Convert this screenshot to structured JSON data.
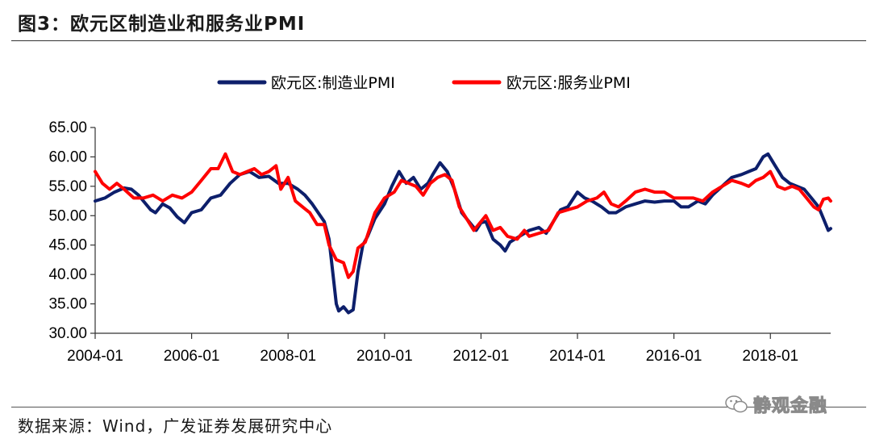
{
  "header": {
    "title": "图3：欧元区制造业和服务业PMI"
  },
  "footer": {
    "source": "数据来源：Wind，广发证券发展研究中心"
  },
  "watermark": {
    "text": "静观金融",
    "icon": "wechat-icon"
  },
  "colors": {
    "manufacturing": "#0d1f6b",
    "services": "#ff0000",
    "axis": "#333333"
  },
  "chart_data": {
    "type": "line",
    "title": "",
    "xlabel": "",
    "ylabel": "",
    "ylim": [
      30,
      65
    ],
    "yticks": [
      "30.00",
      "35.00",
      "40.00",
      "45.00",
      "50.00",
      "55.00",
      "60.00",
      "65.00"
    ],
    "xlim": [
      2004.0,
      2019.25
    ],
    "xticks": [
      "2004-01",
      "2006-01",
      "2008-01",
      "2010-01",
      "2012-01",
      "2014-01",
      "2016-01",
      "2018-01"
    ],
    "legend_position": "top-center",
    "series": [
      {
        "name": "欧元区:制造业PMI",
        "points": [
          [
            2004.0,
            52.5
          ],
          [
            2004.2,
            53.0
          ],
          [
            2004.4,
            54.0
          ],
          [
            2004.6,
            54.7
          ],
          [
            2004.75,
            54.5
          ],
          [
            2004.9,
            53.5
          ],
          [
            2005.0,
            52.5
          ],
          [
            2005.15,
            51.0
          ],
          [
            2005.25,
            50.5
          ],
          [
            2005.4,
            52.0
          ],
          [
            2005.55,
            51.3
          ],
          [
            2005.7,
            49.8
          ],
          [
            2005.85,
            48.8
          ],
          [
            2006.0,
            50.5
          ],
          [
            2006.2,
            51.0
          ],
          [
            2006.4,
            53.0
          ],
          [
            2006.6,
            53.5
          ],
          [
            2006.8,
            55.5
          ],
          [
            2007.0,
            57.0
          ],
          [
            2007.2,
            57.5
          ],
          [
            2007.4,
            56.5
          ],
          [
            2007.6,
            56.7
          ],
          [
            2007.8,
            55.5
          ],
          [
            2008.0,
            55.5
          ],
          [
            2008.2,
            54.5
          ],
          [
            2008.35,
            53.5
          ],
          [
            2008.5,
            52.0
          ],
          [
            2008.6,
            50.8
          ],
          [
            2008.75,
            49.0
          ],
          [
            2008.85,
            46.0
          ],
          [
            2009.0,
            35.0
          ],
          [
            2009.05,
            33.8
          ],
          [
            2009.15,
            34.5
          ],
          [
            2009.25,
            33.5
          ],
          [
            2009.35,
            34.0
          ],
          [
            2009.45,
            40.5
          ],
          [
            2009.55,
            45.0
          ],
          [
            2009.65,
            46.5
          ],
          [
            2009.8,
            49.5
          ],
          [
            2010.0,
            52.0
          ],
          [
            2010.15,
            55.0
          ],
          [
            2010.3,
            57.5
          ],
          [
            2010.45,
            55.5
          ],
          [
            2010.6,
            56.5
          ],
          [
            2010.75,
            54.5
          ],
          [
            2010.9,
            55.5
          ],
          [
            2011.0,
            57.0
          ],
          [
            2011.15,
            59.0
          ],
          [
            2011.3,
            57.5
          ],
          [
            2011.45,
            54.5
          ],
          [
            2011.6,
            50.5
          ],
          [
            2011.75,
            49.0
          ],
          [
            2011.9,
            47.5
          ],
          [
            2012.0,
            48.8
          ],
          [
            2012.1,
            49.0
          ],
          [
            2012.25,
            46.0
          ],
          [
            2012.4,
            45.0
          ],
          [
            2012.5,
            44.0
          ],
          [
            2012.6,
            45.5
          ],
          [
            2012.8,
            46.5
          ],
          [
            2013.0,
            47.5
          ],
          [
            2013.2,
            48.0
          ],
          [
            2013.35,
            47.0
          ],
          [
            2013.5,
            49.0
          ],
          [
            2013.65,
            51.0
          ],
          [
            2013.8,
            51.5
          ],
          [
            2014.0,
            54.0
          ],
          [
            2014.15,
            53.0
          ],
          [
            2014.3,
            52.5
          ],
          [
            2014.5,
            51.5
          ],
          [
            2014.65,
            50.5
          ],
          [
            2014.8,
            50.5
          ],
          [
            2015.0,
            51.5
          ],
          [
            2015.2,
            52.0
          ],
          [
            2015.4,
            52.5
          ],
          [
            2015.6,
            52.3
          ],
          [
            2015.8,
            52.5
          ],
          [
            2016.0,
            52.5
          ],
          [
            2016.15,
            51.5
          ],
          [
            2016.3,
            51.5
          ],
          [
            2016.5,
            52.5
          ],
          [
            2016.65,
            52.0
          ],
          [
            2016.8,
            53.5
          ],
          [
            2017.0,
            55.0
          ],
          [
            2017.2,
            56.5
          ],
          [
            2017.4,
            57.0
          ],
          [
            2017.55,
            57.5
          ],
          [
            2017.7,
            58.0
          ],
          [
            2017.85,
            60.0
          ],
          [
            2017.95,
            60.5
          ],
          [
            2018.1,
            58.5
          ],
          [
            2018.25,
            56.5
          ],
          [
            2018.4,
            55.5
          ],
          [
            2018.55,
            55.0
          ],
          [
            2018.7,
            54.5
          ],
          [
            2018.85,
            53.0
          ],
          [
            2019.0,
            51.5
          ],
          [
            2019.1,
            49.5
          ],
          [
            2019.2,
            47.5
          ],
          [
            2019.25,
            47.8
          ]
        ]
      },
      {
        "name": "欧元区:服务业PMI",
        "points": [
          [
            2004.0,
            57.5
          ],
          [
            2004.15,
            55.5
          ],
          [
            2004.3,
            54.5
          ],
          [
            2004.45,
            55.5
          ],
          [
            2004.6,
            54.5
          ],
          [
            2004.8,
            53.0
          ],
          [
            2005.0,
            53.0
          ],
          [
            2005.2,
            53.5
          ],
          [
            2005.4,
            52.5
          ],
          [
            2005.6,
            53.5
          ],
          [
            2005.8,
            53.0
          ],
          [
            2006.0,
            54.0
          ],
          [
            2006.2,
            56.0
          ],
          [
            2006.4,
            58.0
          ],
          [
            2006.55,
            58.0
          ],
          [
            2006.7,
            60.5
          ],
          [
            2006.85,
            57.5
          ],
          [
            2007.0,
            57.0
          ],
          [
            2007.15,
            57.5
          ],
          [
            2007.3,
            58.0
          ],
          [
            2007.45,
            57.0
          ],
          [
            2007.6,
            57.5
          ],
          [
            2007.75,
            58.5
          ],
          [
            2007.85,
            54.5
          ],
          [
            2008.0,
            56.5
          ],
          [
            2008.15,
            52.5
          ],
          [
            2008.3,
            51.5
          ],
          [
            2008.45,
            50.5
          ],
          [
            2008.6,
            48.5
          ],
          [
            2008.75,
            48.5
          ],
          [
            2008.85,
            45.0
          ],
          [
            2009.0,
            42.5
          ],
          [
            2009.15,
            42.0
          ],
          [
            2009.25,
            39.5
          ],
          [
            2009.35,
            40.5
          ],
          [
            2009.45,
            44.5
          ],
          [
            2009.6,
            45.5
          ],
          [
            2009.8,
            50.5
          ],
          [
            2010.0,
            53.0
          ],
          [
            2010.2,
            54.0
          ],
          [
            2010.35,
            56.0
          ],
          [
            2010.5,
            55.5
          ],
          [
            2010.65,
            55.0
          ],
          [
            2010.8,
            53.5
          ],
          [
            2010.95,
            55.5
          ],
          [
            2011.1,
            56.5
          ],
          [
            2011.25,
            57.0
          ],
          [
            2011.4,
            56.0
          ],
          [
            2011.55,
            51.5
          ],
          [
            2011.7,
            49.5
          ],
          [
            2011.85,
            47.5
          ],
          [
            2012.0,
            49.0
          ],
          [
            2012.1,
            50.0
          ],
          [
            2012.25,
            47.5
          ],
          [
            2012.4,
            48.0
          ],
          [
            2012.55,
            46.5
          ],
          [
            2012.75,
            46.0
          ],
          [
            2012.9,
            47.5
          ],
          [
            2013.0,
            46.5
          ],
          [
            2013.2,
            47.0
          ],
          [
            2013.4,
            47.5
          ],
          [
            2013.6,
            50.5
          ],
          [
            2013.8,
            51.0
          ],
          [
            2014.0,
            51.5
          ],
          [
            2014.2,
            52.5
          ],
          [
            2014.4,
            53.0
          ],
          [
            2014.55,
            54.0
          ],
          [
            2014.7,
            52.0
          ],
          [
            2014.85,
            51.5
          ],
          [
            2015.0,
            52.5
          ],
          [
            2015.2,
            54.0
          ],
          [
            2015.4,
            54.5
          ],
          [
            2015.6,
            54.0
          ],
          [
            2015.8,
            54.0
          ],
          [
            2016.0,
            53.0
          ],
          [
            2016.2,
            53.0
          ],
          [
            2016.4,
            53.0
          ],
          [
            2016.6,
            52.5
          ],
          [
            2016.8,
            54.0
          ],
          [
            2017.0,
            55.0
          ],
          [
            2017.2,
            56.0
          ],
          [
            2017.4,
            55.5
          ],
          [
            2017.55,
            55.0
          ],
          [
            2017.7,
            56.0
          ],
          [
            2017.85,
            56.5
          ],
          [
            2018.0,
            57.5
          ],
          [
            2018.15,
            55.0
          ],
          [
            2018.3,
            54.5
          ],
          [
            2018.45,
            55.0
          ],
          [
            2018.6,
            54.5
          ],
          [
            2018.75,
            53.0
          ],
          [
            2018.9,
            51.5
          ],
          [
            2019.0,
            51.0
          ],
          [
            2019.1,
            52.8
          ],
          [
            2019.2,
            53.0
          ],
          [
            2019.25,
            52.5
          ]
        ]
      }
    ]
  }
}
